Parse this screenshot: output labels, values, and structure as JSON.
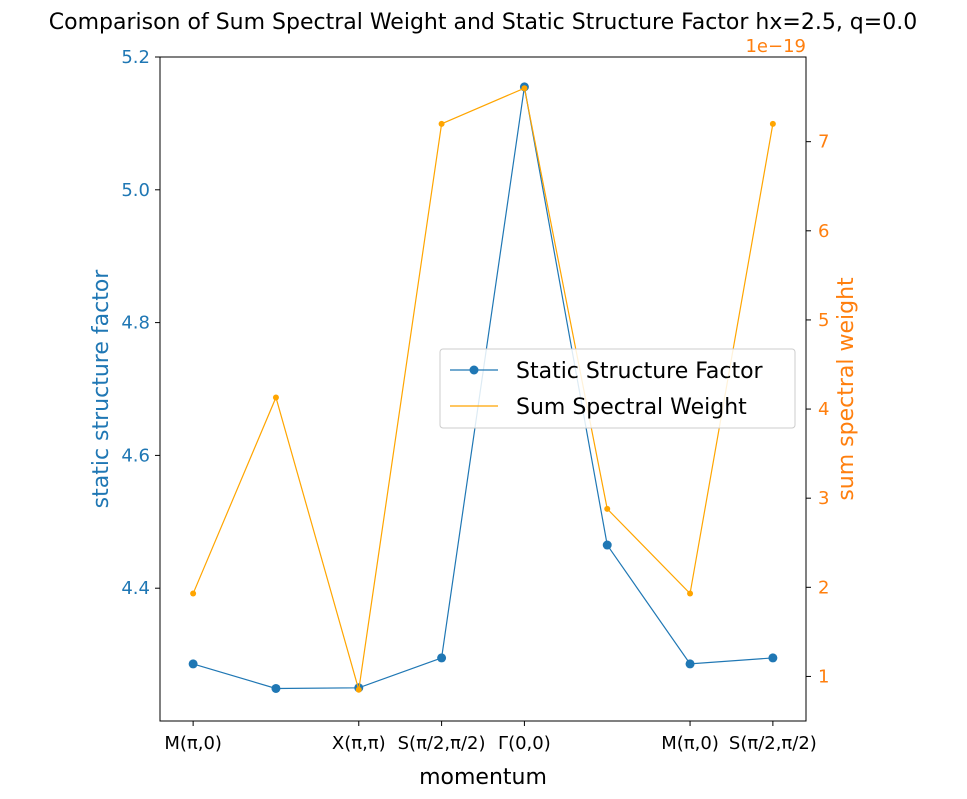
{
  "chart_data": {
    "type": "line",
    "title": "Comparison of Sum Spectral Weight and Static Structure Factor hx=2.5, q=0.0",
    "xlabel": "momentum",
    "ylabel_left": "static structure factor",
    "ylabel_right": "sum spectral weight",
    "right_axis_offset_text": "1e−19",
    "x": [
      0,
      1,
      2,
      3,
      4,
      5,
      6,
      7
    ],
    "x_ticks": [
      {
        "x": 0,
        "label": "M(π,0)"
      },
      {
        "x": 2,
        "label": "X(π,π)"
      },
      {
        "x": 3,
        "label": "S(π/2,π/2)"
      },
      {
        "x": 4,
        "label": "Γ(0,0)"
      },
      {
        "x": 6,
        "label": "M(π,0)"
      },
      {
        "x": 7,
        "label": "S(π/2,π/2)"
      }
    ],
    "xlim": [
      -0.4,
      7.4
    ],
    "ylim_left": [
      4.2,
      5.2
    ],
    "ylim_right": [
      0.5,
      7.95
    ],
    "left_ticks": [
      "4.4",
      "4.6",
      "4.8",
      "5.0",
      "5.2"
    ],
    "right_ticks": [
      "1",
      "2",
      "3",
      "4",
      "5",
      "6",
      "7"
    ],
    "series": [
      {
        "name": "Static Structure Factor",
        "axis": "left",
        "color": "#1f77b4",
        "marker": "circle",
        "values": [
          4.286,
          4.249,
          4.25,
          4.295,
          5.155,
          4.465,
          4.286,
          4.295
        ]
      },
      {
        "name": "Sum Spectral Weight",
        "axis": "right",
        "color": "#ffa500",
        "marker": "small-dot",
        "values": [
          1.93,
          4.13,
          0.85,
          7.2,
          7.6,
          2.88,
          1.93,
          7.2
        ]
      }
    ],
    "legend_location": "center-right",
    "grid": false,
    "axis_colors": {
      "left": "#1f77b4",
      "right": "#ff7f0e"
    }
  }
}
